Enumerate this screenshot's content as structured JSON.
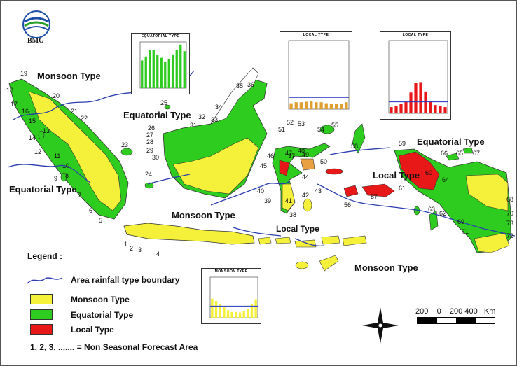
{
  "logo": {
    "text": "BMG"
  },
  "region_labels": {
    "monsoon_nw": "Monsoon Type",
    "equatorial_borneo": "Equatorial Type",
    "equatorial_sumatra": "Equatorial Type",
    "monsoon_center": "Monsoon Type",
    "local_sulawesi": "Local Type",
    "local_maluku": "Local Type",
    "equatorial_papua": "Equatorial Type",
    "monsoon_se": "Monsoon Type"
  },
  "legend": {
    "title": "Legend  :",
    "boundary": "Area rainfall type boundary",
    "monsoon": "Monsoon Type",
    "equatorial": "Equatorial Type",
    "local": "Local Type",
    "nonseasonal": "1, 2, 3, ....... = Non Seasonal Forecast Area"
  },
  "scale": {
    "text": "200    0    200 400   Km"
  },
  "colors": {
    "monsoon": "#f5f03a",
    "equatorial": "#2ecc1f",
    "local": "#e81818",
    "boundary": "#2c3fb0",
    "local_orange": "#e8a040"
  },
  "insets": {
    "equatorial": {
      "title": "EQUATORIAL TYPE",
      "values": [
        210,
        240,
        290,
        290,
        250,
        230,
        200,
        220,
        250,
        290,
        330,
        280
      ]
    },
    "local_1": {
      "title": "LOCAL TYPE",
      "values": [
        60,
        70,
        70,
        75,
        80,
        70,
        70,
        60,
        55,
        50,
        55,
        70
      ],
      "mean": 120,
      "ymax": 700
    },
    "local_2": {
      "title": "LOCAL TYPE",
      "values": [
        60,
        70,
        90,
        110,
        200,
        290,
        300,
        210,
        110,
        80,
        70,
        60
      ],
      "mean": 110,
      "ymax": 700
    },
    "monsoon": {
      "title": "MONSOON TYPE",
      "values": [
        330,
        290,
        240,
        180,
        130,
        100,
        100,
        90,
        110,
        150,
        230,
        320
      ],
      "mean": 200,
      "ymax": 700
    }
  },
  "area_numbers": [
    "1",
    "2",
    "3",
    "4",
    "5",
    "6",
    "7",
    "8",
    "9",
    "10",
    "11",
    "12",
    "13",
    "14",
    "15",
    "16",
    "17",
    "18",
    "19",
    "20",
    "21",
    "22",
    "23",
    "24",
    "25",
    "26",
    "27",
    "28",
    "29",
    "30",
    "31",
    "32",
    "33",
    "34",
    "35",
    "36",
    "37",
    "38",
    "39",
    "40",
    "41",
    "42",
    "43",
    "44",
    "45",
    "46",
    "47",
    "48",
    "49",
    "50",
    "51",
    "52",
    "53",
    "54",
    "55",
    "56",
    "57",
    "58",
    "59",
    "60",
    "61",
    "62",
    "63",
    "64",
    "65",
    "66",
    "67",
    "68",
    "69",
    "70",
    "71",
    "72",
    "73"
  ]
}
